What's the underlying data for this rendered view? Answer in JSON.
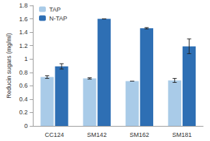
{
  "chart_data": {
    "type": "bar",
    "y_label": "Reducin sugars (mg/ml)",
    "categories": [
      "CC124",
      "SM142",
      "SM162",
      "SM181"
    ],
    "series": [
      {
        "name": "TAP",
        "color": "#a9cbe8",
        "values": [
          0.73,
          0.71,
          0.67,
          0.68
        ],
        "errors": [
          0.02,
          0.01,
          0.0,
          0.03
        ]
      },
      {
        "name": "N-TAP",
        "color": "#2e6fb4",
        "values": [
          0.89,
          1.6,
          1.46,
          1.19
        ],
        "errors": [
          0.04,
          0.0,
          0.01,
          0.11
        ]
      }
    ],
    "ylim": [
      0,
      1.8
    ],
    "yticks": [
      0,
      0.2,
      0.4,
      0.6,
      0.8,
      1,
      1.2,
      1.4,
      1.6,
      1.8
    ],
    "grid": false,
    "legend": "upper left"
  }
}
